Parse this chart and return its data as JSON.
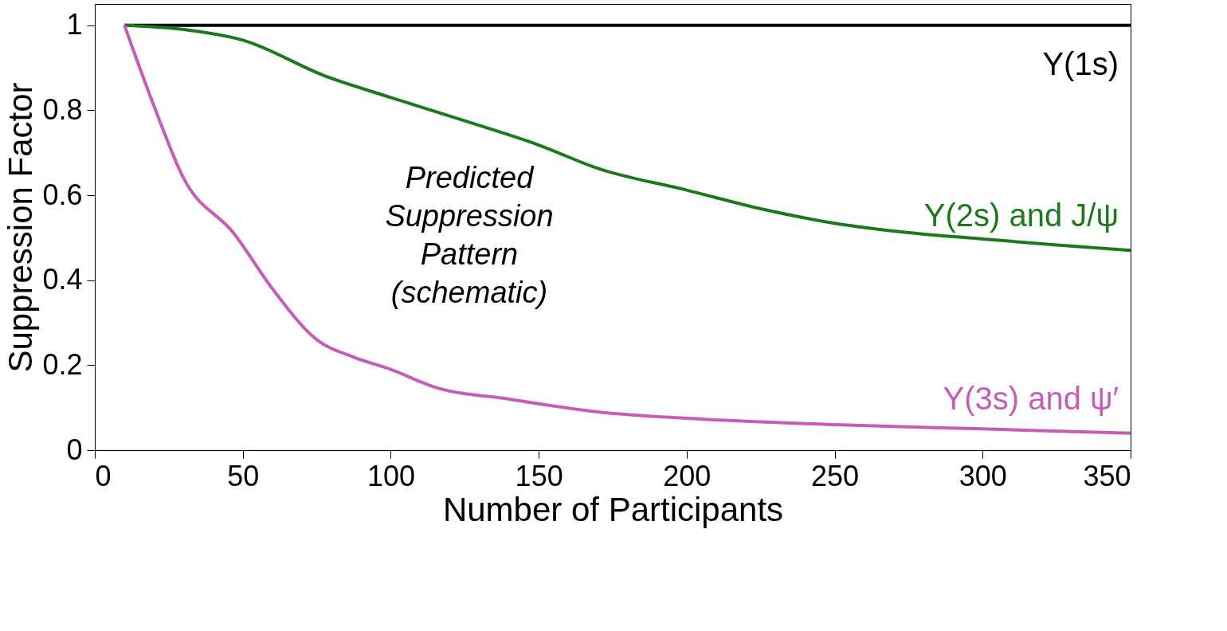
{
  "chart_data": {
    "type": "line",
    "xlabel": "Number of Participants",
    "ylabel": "Suppression Factor",
    "xlim": [
      0,
      350
    ],
    "xticks": [
      0,
      50,
      100,
      150,
      200,
      250,
      300,
      350
    ],
    "ylim": [
      0,
      1.05
    ],
    "yticks": [
      0,
      0.2,
      0.4,
      0.6,
      0.8,
      1
    ],
    "grid": false,
    "legend": false,
    "marker": "none",
    "line_style": "solid",
    "annotations": [
      "Predicted\nSuppression\nPattern\n(schematic)"
    ],
    "series": [
      {
        "name": "Υ(1s)",
        "color": "#000000",
        "x": [
          10,
          350
        ],
        "values": [
          1,
          1
        ]
      },
      {
        "name": "Υ(2s) and J/ψ",
        "color": "#1a7a1a",
        "x": [
          10,
          30,
          50,
          78,
          100,
          125,
          150,
          170,
          200,
          225,
          250,
          275,
          300,
          325,
          350
        ],
        "values": [
          1,
          0.99,
          0.965,
          0.88,
          0.83,
          0.775,
          0.718,
          0.663,
          0.612,
          0.568,
          0.534,
          0.512,
          0.497,
          0.483,
          0.47
        ]
      },
      {
        "name": "Υ(3s) and ψ′",
        "color": "#c65bb8",
        "x": [
          10,
          20,
          30,
          47,
          60,
          75,
          87,
          100,
          115,
          140,
          170,
          200,
          250,
          300,
          350
        ],
        "values": [
          1,
          0.81,
          0.64,
          0.51,
          0.38,
          0.26,
          0.22,
          0.19,
          0.148,
          0.12,
          0.09,
          0.075,
          0.06,
          0.05,
          0.04
        ]
      }
    ]
  }
}
